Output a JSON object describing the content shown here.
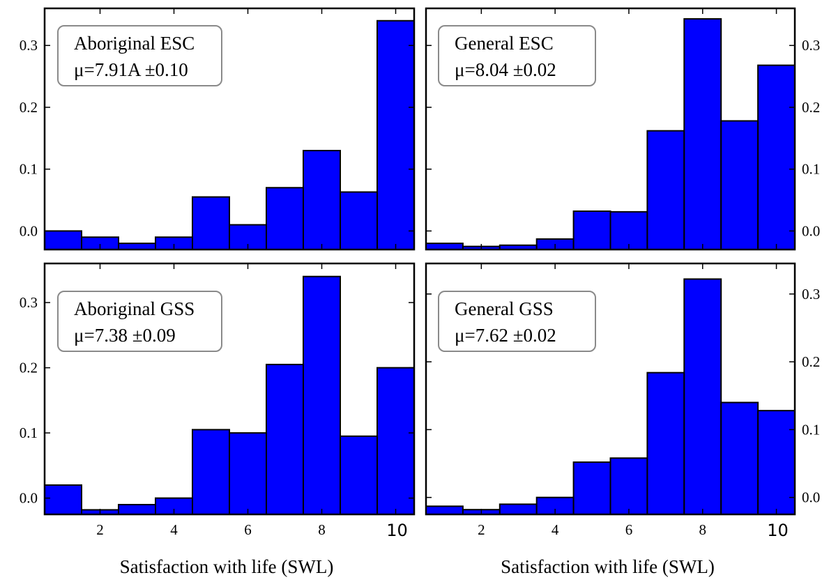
{
  "chart_data": [
    {
      "type": "bar",
      "panel": "top-left",
      "bins": [
        1,
        2,
        3,
        4,
        5,
        6,
        7,
        8,
        9,
        10
      ],
      "values": [
        0.0,
        -0.01,
        -0.02,
        -0.01,
        0.055,
        0.01,
        0.07,
        0.13,
        0.063,
        0.34
      ],
      "legend_title": "Aboriginal ESC",
      "legend_stat": "μ=7.91A ±0.10",
      "yticks": [
        "0.0",
        "0.1",
        "0.2",
        "0.3"
      ],
      "yaxis_side": "left",
      "ylim": [
        -0.03,
        0.36
      ],
      "xlim": [
        0.5,
        10.5
      ],
      "color": "#0000ff"
    },
    {
      "type": "bar",
      "panel": "top-right",
      "bins": [
        1,
        2,
        3,
        4,
        5,
        6,
        7,
        8,
        9,
        10
      ],
      "values": [
        -0.02,
        -0.025,
        -0.023,
        -0.013,
        0.032,
        0.031,
        0.162,
        0.343,
        0.178,
        0.268
      ],
      "legend_title": "General ESC",
      "legend_stat": "μ=8.04 ±0.02",
      "yticks": [
        "0.0",
        "0.1",
        "0.2",
        "0.3"
      ],
      "yaxis_side": "right",
      "ylim": [
        -0.03,
        0.36
      ],
      "xlim": [
        0.5,
        10.5
      ],
      "color": "#0000ff"
    },
    {
      "type": "bar",
      "panel": "bottom-left",
      "bins": [
        1,
        2,
        3,
        4,
        5,
        6,
        7,
        8,
        9,
        10
      ],
      "values": [
        0.02,
        -0.018,
        -0.01,
        0.0,
        0.105,
        0.1,
        0.205,
        0.34,
        0.095,
        0.2
      ],
      "legend_title": "Aboriginal GSS",
      "legend_stat": "μ=7.38 ±0.09",
      "yticks": [
        "0.0",
        "0.1",
        "0.2",
        "0.3"
      ],
      "yaxis_side": "left",
      "ylim": [
        -0.025,
        0.36
      ],
      "xlim": [
        0.5,
        10.5
      ],
      "xticks": [
        "2",
        "4",
        "6",
        "8",
        "10"
      ],
      "xlabel": "Satisfaction with life (SWL)",
      "color": "#0000ff"
    },
    {
      "type": "bar",
      "panel": "bottom-right",
      "bins": [
        1,
        2,
        3,
        4,
        5,
        6,
        7,
        8,
        9,
        10
      ],
      "values": [
        -0.013,
        -0.018,
        -0.01,
        0.0,
        0.052,
        0.058,
        0.184,
        0.322,
        0.14,
        0.128
      ],
      "legend_title": "General GSS",
      "legend_stat": "μ=7.62 ±0.02",
      "yticks": [
        "0.0",
        "0.1",
        "0.2",
        "0.3"
      ],
      "yaxis_side": "right",
      "ylim": [
        -0.025,
        0.345
      ],
      "xlim": [
        0.5,
        10.5
      ],
      "xticks": [
        "2",
        "4",
        "6",
        "8",
        "10"
      ],
      "xlabel": "Satisfaction with life (SWL)",
      "color": "#0000ff"
    }
  ]
}
